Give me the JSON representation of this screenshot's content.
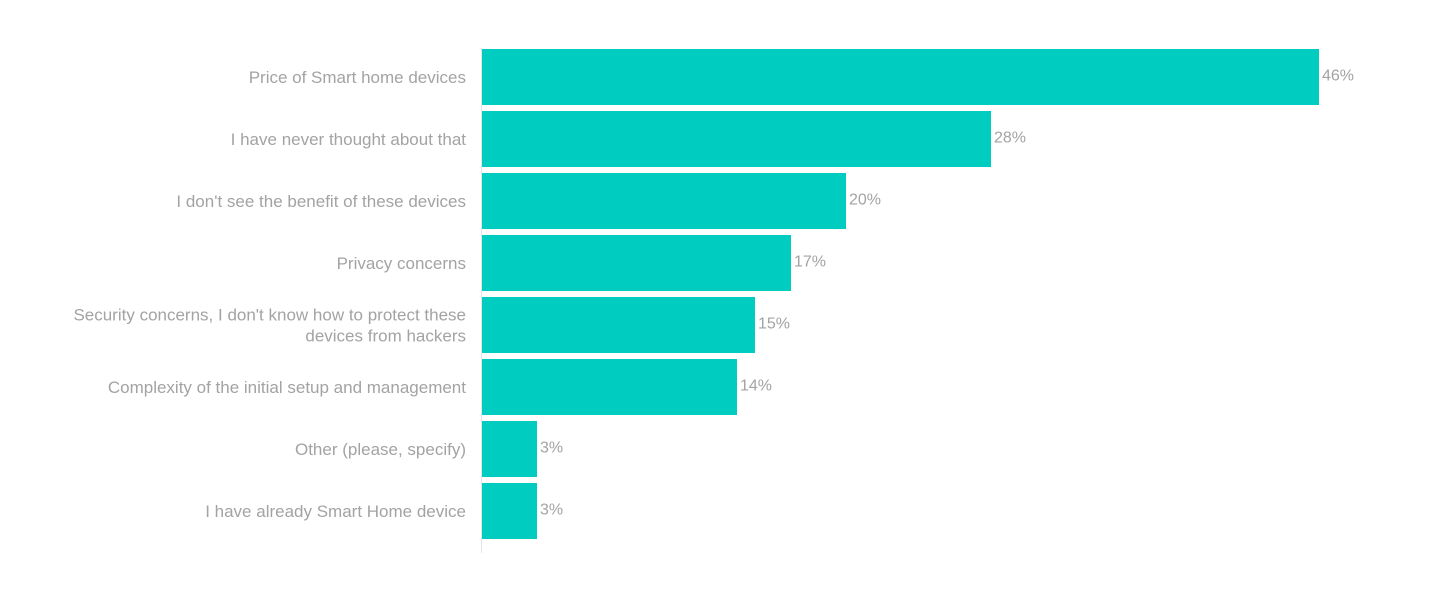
{
  "chart_data": {
    "type": "bar",
    "orientation": "horizontal",
    "categories": [
      [
        "Price of Smart home devices"
      ],
      [
        "I have never thought about that"
      ],
      [
        "I don't see the benefit of these devices"
      ],
      [
        "Privacy concerns"
      ],
      [
        "Security concerns, I don't know how to protect these",
        "devices from hackers"
      ],
      [
        "Complexity of the initial setup and management"
      ],
      [
        "Other (please, specify)"
      ],
      [
        "I have already Smart Home device"
      ]
    ],
    "values": [
      46,
      28,
      20,
      17,
      15,
      14,
      3,
      3
    ],
    "value_labels": [
      "46%",
      "28%",
      "20%",
      "17%",
      "15%",
      "14%",
      "3%",
      "3%"
    ],
    "xlim": [
      0,
      46
    ],
    "bar_color": "#00ccbf",
    "text_color": "#a3a3a3",
    "axis_color": "#e6e6e6"
  }
}
